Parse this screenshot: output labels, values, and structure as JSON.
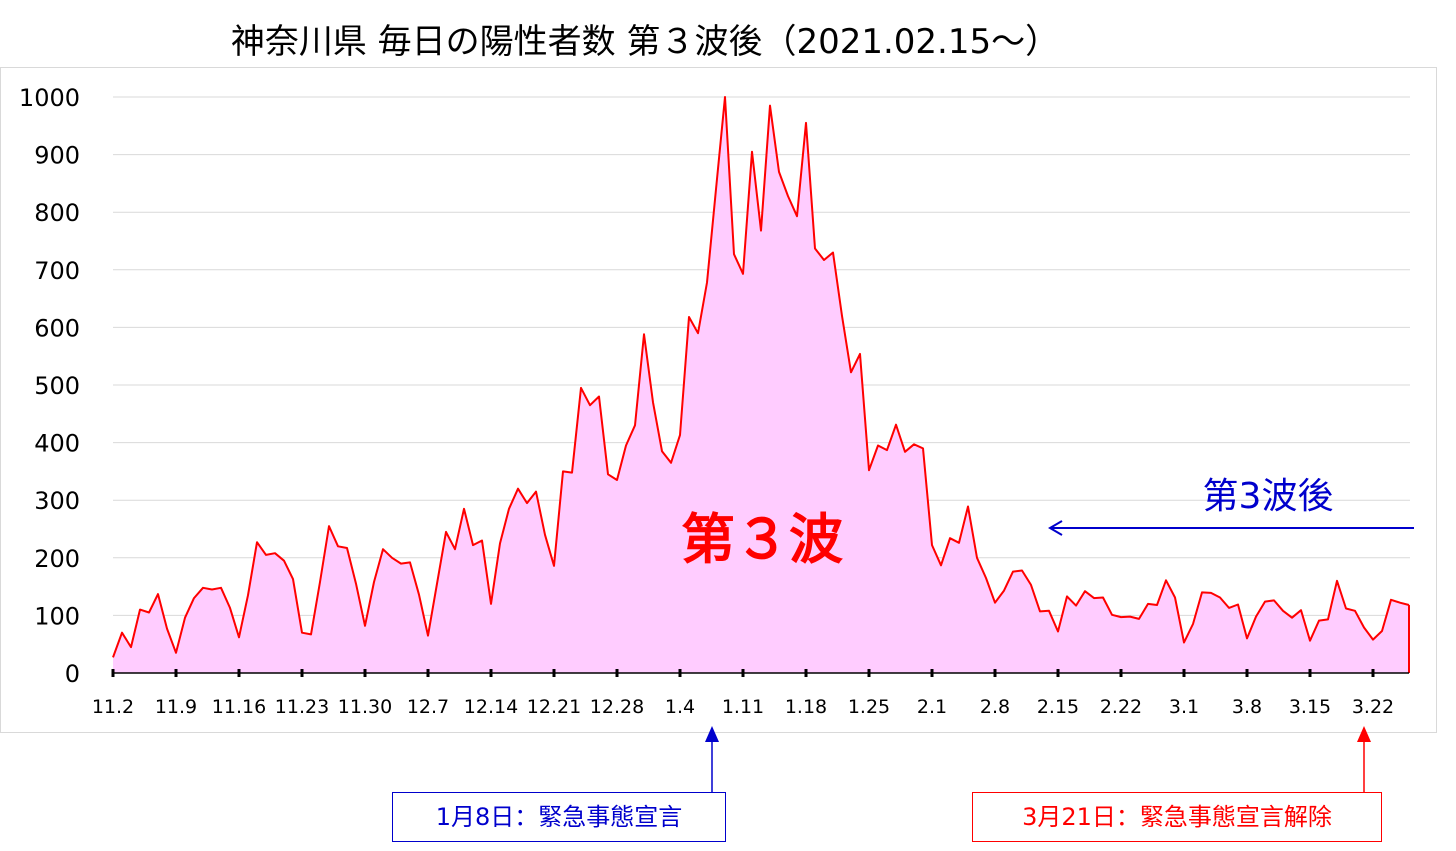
{
  "colors": {
    "line": "#ff0000",
    "fill": "#ffccff",
    "annotation_blue": "#0000cc",
    "annotation_red": "#ff0000",
    "grid": "#d9d9d9"
  },
  "chart_data": {
    "type": "area",
    "title": "神奈川県 毎日の陽性者数 第３波後（2021.02.15～）",
    "xlabel": "",
    "ylabel": "",
    "ylim": [
      0,
      1000
    ],
    "y_ticks": [
      "0",
      "100",
      "200",
      "300",
      "400",
      "500",
      "600",
      "700",
      "800",
      "900",
      "1000"
    ],
    "x_tick_labels": [
      "11.2",
      "11.9",
      "11.16",
      "11.23",
      "11.30",
      "12.7",
      "12.14",
      "12.21",
      "12.28",
      "1.4",
      "1.11",
      "1.18",
      "1.25",
      "2.1",
      "2.8",
      "2.15",
      "2.22",
      "3.1",
      "3.8",
      "3.15",
      "3.22"
    ],
    "grid": true,
    "legend": "none",
    "x_start": "11.2",
    "values": [
      27,
      70,
      45,
      110,
      105,
      137,
      77,
      35,
      96,
      130,
      148,
      145,
      148,
      113,
      62,
      135,
      227,
      205,
      208,
      195,
      163,
      70,
      67,
      158,
      255,
      220,
      217,
      155,
      82,
      158,
      215,
      200,
      190,
      192,
      136,
      65,
      155,
      245,
      215,
      285,
      222,
      230,
      120,
      225,
      285,
      320,
      295,
      315,
      240,
      186,
      350,
      348,
      495,
      465,
      480,
      345,
      335,
      395,
      430,
      588,
      470,
      385,
      365,
      413,
      618,
      590,
      678,
      840,
      1000,
      727,
      693,
      905,
      768,
      985,
      870,
      828,
      793,
      955,
      737,
      717,
      730,
      620,
      522,
      554,
      352,
      395,
      387,
      431,
      384,
      397,
      390,
      222,
      187,
      234,
      226,
      289,
      200,
      165,
      122,
      143,
      176,
      178,
      153,
      107,
      108,
      72,
      133,
      117,
      142,
      130,
      131,
      101,
      97,
      98,
      94,
      120,
      118,
      161,
      131,
      53,
      85,
      140,
      139,
      131,
      113,
      119,
      60,
      98,
      124,
      126,
      108,
      96,
      109,
      56,
      91,
      93,
      160,
      112,
      108,
      79,
      58,
      73,
      127,
      122,
      118
    ]
  },
  "annotations": {
    "wave_label": "第３波",
    "after_wave_label": "第3波後",
    "emergency_declaration": "1月8日：緊急事態宣言",
    "emergency_lift": "3月21日：緊急事態宣言解除"
  }
}
